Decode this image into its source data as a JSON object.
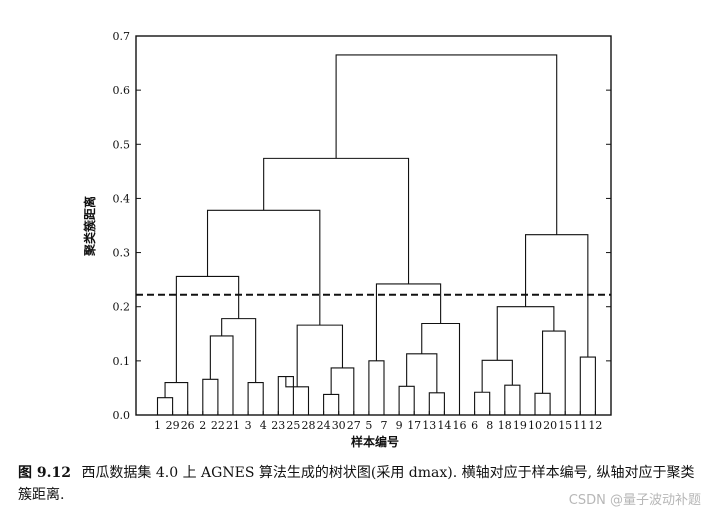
{
  "chart_data": {
    "type": "dendrogram",
    "ylabel": "聚类簇距离",
    "xlabel": "样本编号",
    "ylim": [
      0,
      0.7
    ],
    "yticks": [
      "0.0",
      "0.1",
      "0.2",
      "0.3",
      "0.4",
      "0.5",
      "0.6",
      "0.7"
    ],
    "leaf_order": [
      "1",
      "29",
      "26",
      "2",
      "22",
      "21",
      "3",
      "4",
      "23",
      "25",
      "28",
      "24",
      "30",
      "27",
      "5",
      "7",
      "9",
      "17",
      "13",
      "14",
      "16",
      "6",
      "8",
      "18",
      "19",
      "10",
      "20",
      "15",
      "11",
      "12"
    ],
    "cut_line": 0.222,
    "merges": [
      {
        "a": "1",
        "b": "29",
        "h": 0.032
      },
      {
        "a": "m1",
        "b": "26",
        "h": 0.06
      },
      {
        "a": "2",
        "b": "22",
        "h": 0.066
      },
      {
        "a": "m3",
        "b": "21",
        "h": 0.146
      },
      {
        "a": "3",
        "b": "4",
        "h": 0.06
      },
      {
        "a": "m4",
        "b": "m5",
        "h": 0.178
      },
      {
        "a": "m2",
        "b": "m6",
        "h": 0.256
      },
      {
        "a": "23",
        "b": "25",
        "h": 0.071
      },
      {
        "a": "m8",
        "b": "28",
        "h": 0.052
      },
      {
        "a": "24",
        "b": "30",
        "h": 0.038
      },
      {
        "a": "m10",
        "b": "27",
        "h": 0.087
      },
      {
        "a": "m9",
        "b": "m11",
        "h": 0.166
      },
      {
        "a": "m7",
        "b": "m12",
        "h": 0.378
      },
      {
        "a": "5",
        "b": "7",
        "h": 0.1
      },
      {
        "a": "9",
        "b": "17",
        "h": 0.053
      },
      {
        "a": "13",
        "b": "14",
        "h": 0.041
      },
      {
        "a": "m15",
        "b": "m16",
        "h": 0.113
      },
      {
        "a": "m17",
        "b": "16",
        "h": 0.169
      },
      {
        "a": "m14",
        "b": "m18",
        "h": 0.242
      },
      {
        "a": "m13",
        "b": "m19",
        "h": 0.474
      },
      {
        "a": "6",
        "b": "8",
        "h": 0.042
      },
      {
        "a": "18",
        "b": "19",
        "h": 0.055
      },
      {
        "a": "m21",
        "b": "m22",
        "h": 0.101
      },
      {
        "a": "10",
        "b": "20",
        "h": 0.04
      },
      {
        "a": "m24",
        "b": "15",
        "h": 0.155
      },
      {
        "a": "m23",
        "b": "m25",
        "h": 0.2
      },
      {
        "a": "11",
        "b": "12",
        "h": 0.107
      },
      {
        "a": "m26",
        "b": "m27",
        "h": 0.333
      },
      {
        "a": "m20",
        "b": "m28",
        "h": 0.665
      }
    ]
  },
  "caption": {
    "label": "图 9.12",
    "text": "西瓜数据集 4.0 上 AGNES 算法生成的树状图(采用 dmax). 横轴对应于样本编号, 纵轴对应于聚类簇距离."
  },
  "watermark": "CSDN @量子波动补题"
}
